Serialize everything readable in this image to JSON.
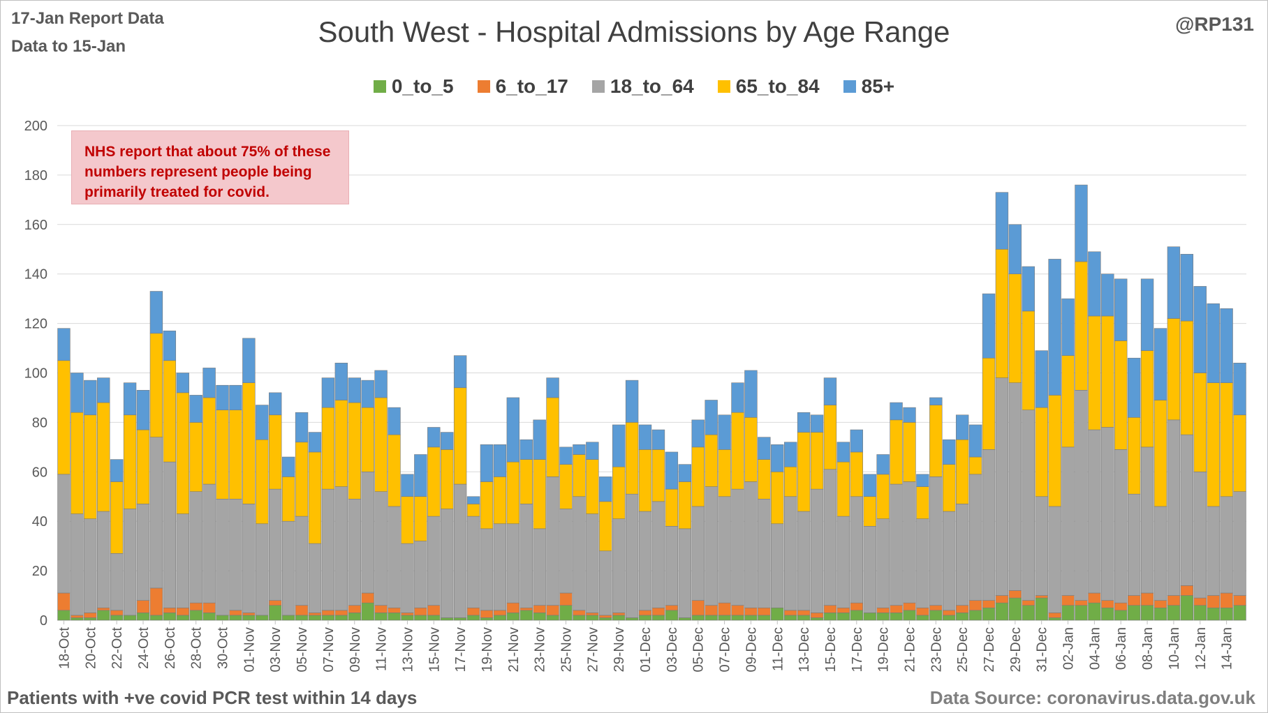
{
  "header": {
    "report_line1": "17-Jan Report Data",
    "report_line2": "Data to 15-Jan",
    "handle": "@RP131"
  },
  "note": {
    "line1": "NHS report that about 75% of these",
    "line2": "numbers represent people being",
    "line3": "primarily treated for covid."
  },
  "footer": {
    "left": "Patients with  +ve covid PCR test within 14 days",
    "right": "Data Source: coronavirus.data.gov.uk"
  },
  "colors": {
    "0_to_5": "#70ad47",
    "6_to_17": "#ed7d31",
    "18_to_64": "#a5a5a5",
    "65_to_84": "#ffc000",
    "85+": "#5b9bd5",
    "gridline": "#d9d9d9",
    "text": "#595959"
  },
  "chart_data": {
    "type": "bar",
    "stacked": true,
    "title": "South West - Hospital Admissions by Age Range",
    "xlabel": "",
    "ylabel": "",
    "ylim": [
      0,
      200
    ],
    "yticks": [
      0,
      20,
      40,
      60,
      80,
      100,
      120,
      140,
      160,
      180,
      200
    ],
    "grid": true,
    "legend_position": "top",
    "categories": [
      "18-Oct",
      "19-Oct",
      "20-Oct",
      "21-Oct",
      "22-Oct",
      "23-Oct",
      "24-Oct",
      "25-Oct",
      "26-Oct",
      "27-Oct",
      "28-Oct",
      "29-Oct",
      "30-Oct",
      "31-Oct",
      "01-Nov",
      "02-Nov",
      "03-Nov",
      "04-Nov",
      "05-Nov",
      "06-Nov",
      "07-Nov",
      "08-Nov",
      "09-Nov",
      "10-Nov",
      "11-Nov",
      "12-Nov",
      "13-Nov",
      "14-Nov",
      "15-Nov",
      "16-Nov",
      "17-Nov",
      "18-Nov",
      "19-Nov",
      "20-Nov",
      "21-Nov",
      "22-Nov",
      "23-Nov",
      "24-Nov",
      "25-Nov",
      "26-Nov",
      "27-Nov",
      "28-Nov",
      "29-Nov",
      "30-Nov",
      "01-Dec",
      "02-Dec",
      "03-Dec",
      "04-Dec",
      "05-Dec",
      "06-Dec",
      "07-Dec",
      "08-Dec",
      "09-Dec",
      "10-Dec",
      "11-Dec",
      "12-Dec",
      "13-Dec",
      "14-Dec",
      "15-Dec",
      "16-Dec",
      "17-Dec",
      "18-Dec",
      "19-Dec",
      "20-Dec",
      "21-Dec",
      "22-Dec",
      "23-Dec",
      "24-Dec",
      "25-Dec",
      "26-Dec",
      "27-Dec",
      "28-Dec",
      "29-Dec",
      "30-Dec",
      "31-Dec",
      "01-Jan",
      "02-Jan",
      "03-Jan",
      "04-Jan",
      "05-Jan",
      "06-Jan",
      "07-Jan",
      "08-Jan",
      "09-Jan",
      "10-Jan",
      "11-Jan",
      "12-Jan",
      "13-Jan",
      "14-Jan",
      "15-Jan"
    ],
    "tick_labels": [
      "18-Oct",
      "20-Oct",
      "22-Oct",
      "24-Oct",
      "26-Oct",
      "28-Oct",
      "30-Oct",
      "01-Nov",
      "03-Nov",
      "05-Nov",
      "07-Nov",
      "09-Nov",
      "11-Nov",
      "13-Nov",
      "15-Nov",
      "17-Nov",
      "19-Nov",
      "21-Nov",
      "23-Nov",
      "25-Nov",
      "27-Nov",
      "29-Nov",
      "01-Dec",
      "03-Dec",
      "05-Dec",
      "07-Dec",
      "09-Dec",
      "11-Dec",
      "13-Dec",
      "15-Dec",
      "17-Dec",
      "19-Dec",
      "21-Dec",
      "23-Dec",
      "25-Dec",
      "27-Dec",
      "29-Dec",
      "31-Dec",
      "02-Jan",
      "04-Jan",
      "06-Jan",
      "08-Jan",
      "10-Jan",
      "12-Jan",
      "14-Jan"
    ],
    "series": [
      {
        "name": "0_to_5",
        "values": [
          4,
          1,
          1,
          4,
          2,
          2,
          3,
          2,
          3,
          2,
          4,
          3,
          2,
          2,
          2,
          2,
          6,
          2,
          2,
          2,
          2,
          2,
          3,
          7,
          3,
          3,
          2,
          2,
          2,
          1,
          1,
          2,
          1,
          2,
          3,
          4,
          3,
          2,
          6,
          2,
          2,
          1,
          2,
          1,
          2,
          2,
          4,
          1,
          2,
          2,
          2,
          2,
          2,
          2,
          5,
          2,
          2,
          1,
          3,
          3,
          4,
          3,
          3,
          3,
          4,
          2,
          4,
          2,
          3,
          4,
          5,
          7,
          9,
          6,
          9,
          1,
          6,
          6,
          7,
          5,
          4,
          6,
          6,
          5,
          6,
          10,
          6,
          5,
          5,
          6
        ]
      },
      {
        "name": "6_to_17",
        "values": [
          7,
          1,
          2,
          1,
          2,
          0,
          5,
          11,
          2,
          3,
          3,
          4,
          0,
          2,
          1,
          0,
          2,
          0,
          4,
          1,
          2,
          2,
          3,
          4,
          3,
          2,
          1,
          3,
          4,
          0,
          0,
          3,
          3,
          2,
          4,
          1,
          3,
          4,
          5,
          2,
          1,
          1,
          1,
          0,
          2,
          3,
          2,
          0,
          6,
          4,
          5,
          4,
          3,
          3,
          0,
          2,
          2,
          2,
          3,
          2,
          3,
          0,
          2,
          3,
          3,
          3,
          2,
          2,
          3,
          4,
          3,
          3,
          3,
          2,
          1,
          2,
          4,
          2,
          4,
          3,
          3,
          4,
          5,
          3,
          4,
          4,
          3,
          5,
          6,
          4
        ]
      },
      {
        "name": "18_to_64",
        "values": [
          48,
          41,
          38,
          39,
          23,
          43,
          39,
          61,
          59,
          38,
          45,
          48,
          47,
          45,
          44,
          37,
          45,
          38,
          36,
          28,
          49,
          50,
          43,
          49,
          46,
          41,
          28,
          27,
          36,
          44,
          54,
          37,
          33,
          35,
          32,
          42,
          31,
          52,
          34,
          46,
          40,
          26,
          38,
          50,
          40,
          43,
          32,
          36,
          38,
          48,
          43,
          47,
          51,
          44,
          34,
          46,
          40,
          50,
          55,
          37,
          43,
          35,
          36,
          49,
          49,
          36,
          52,
          40,
          41,
          51,
          61,
          88,
          84,
          77,
          40,
          43,
          60,
          85,
          66,
          70,
          62,
          41,
          59,
          38,
          71,
          61,
          51,
          36,
          39,
          42
        ]
      },
      {
        "name": "65_to_84",
        "values": [
          46,
          41,
          42,
          44,
          29,
          38,
          30,
          42,
          41,
          49,
          28,
          35,
          36,
          36,
          49,
          34,
          30,
          18,
          30,
          37,
          33,
          35,
          39,
          26,
          38,
          29,
          19,
          18,
          28,
          24,
          39,
          5,
          19,
          19,
          25,
          18,
          28,
          32,
          18,
          17,
          22,
          20,
          21,
          29,
          25,
          21,
          15,
          19,
          24,
          21,
          19,
          31,
          26,
          16,
          21,
          12,
          32,
          23,
          26,
          22,
          18,
          12,
          18,
          26,
          24,
          13,
          29,
          19,
          26,
          7,
          37,
          52,
          44,
          40,
          36,
          45,
          37,
          52,
          46,
          45,
          44,
          31,
          39,
          43,
          41,
          46,
          40,
          50,
          46,
          31
        ]
      },
      {
        "name": "85+",
        "values": [
          13,
          16,
          14,
          10,
          9,
          13,
          16,
          17,
          12,
          8,
          11,
          12,
          10,
          10,
          18,
          14,
          9,
          8,
          12,
          8,
          12,
          15,
          10,
          11,
          11,
          11,
          9,
          17,
          8,
          7,
          13,
          3,
          15,
          13,
          26,
          8,
          16,
          8,
          7,
          4,
          7,
          10,
          17,
          17,
          10,
          8,
          15,
          7,
          11,
          14,
          14,
          12,
          19,
          9,
          11,
          10,
          8,
          7,
          11,
          8,
          9,
          9,
          8,
          7,
          6,
          5,
          3,
          10,
          10,
          13,
          26,
          23,
          20,
          18,
          23,
          55,
          23,
          31,
          26,
          17,
          25,
          24,
          29,
          29,
          29,
          27,
          35,
          32,
          30,
          21
        ]
      }
    ]
  }
}
